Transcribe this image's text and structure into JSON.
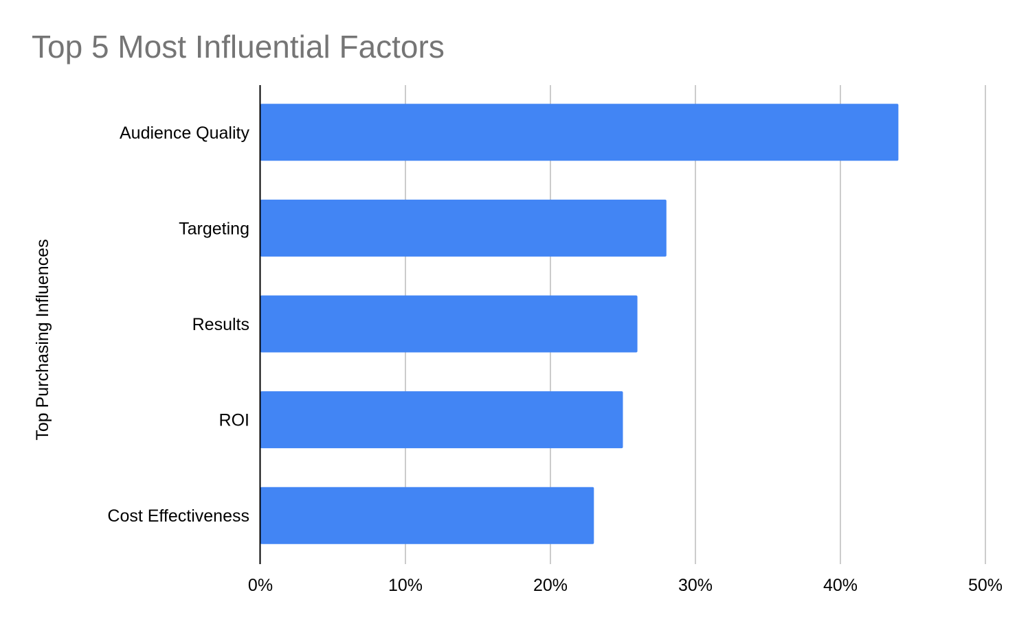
{
  "chart_data": {
    "type": "bar",
    "orientation": "horizontal",
    "title": "Top 5 Most Influential Factors",
    "xlabel": "",
    "ylabel": "Top Purchasing Influences",
    "categories": [
      "Audience Quality",
      "Targeting",
      "Results",
      "ROI",
      "Cost Effectiveness"
    ],
    "values": [
      44,
      28,
      26,
      25,
      23
    ],
    "value_unit": "%",
    "xlim": [
      0,
      50
    ],
    "xticks": [
      "0%",
      "10%",
      "20%",
      "30%",
      "40%",
      "50%"
    ],
    "grid": "vertical",
    "legend": "none",
    "colors": {
      "bar": "#4285f4",
      "grid": "#cccccc",
      "axis": "#000000",
      "title": "#757575",
      "text": "#000000"
    }
  }
}
